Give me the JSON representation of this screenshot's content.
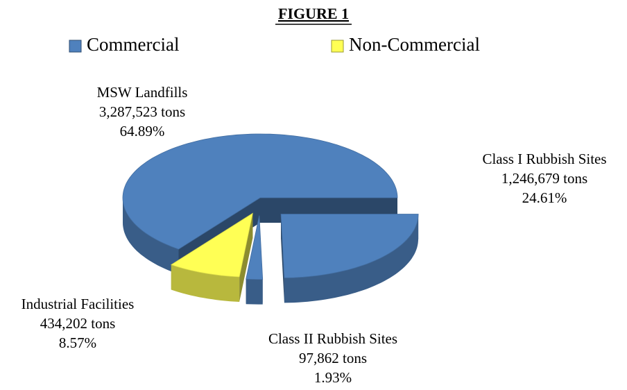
{
  "chart_data": {
    "type": "pie3d",
    "title": "FIGURE 1",
    "legend": [
      {
        "name": "Commercial",
        "color": "#4f81bd"
      },
      {
        "name": "Non-Commercial",
        "color": "#ffff55"
      }
    ],
    "categories": [
      "MSW Landfills",
      "Class I Rubbish Sites",
      "Class II Rubbish Sites",
      "Industrial Facilities"
    ],
    "values": [
      3287523,
      1246679,
      97862,
      434202
    ],
    "value_labels": [
      "3,287,523 tons",
      "1,246,679 tons",
      "97,862 tons",
      "434,202 tons"
    ],
    "percent_labels": [
      "64.89%",
      "24.61%",
      "1.93%",
      "8.57%"
    ],
    "colors": [
      "#4f81bd",
      "#4f81bd",
      "#4f81bd",
      "#ffff55"
    ]
  }
}
